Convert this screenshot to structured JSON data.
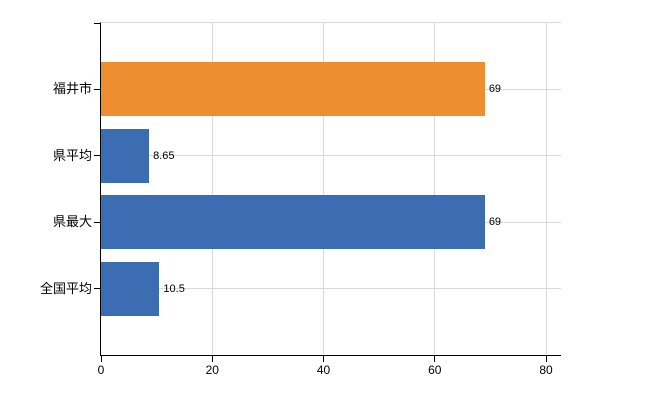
{
  "chart_data": {
    "type": "bar",
    "orientation": "horizontal",
    "title": "",
    "xlabel": "",
    "ylabel": "",
    "categories": [
      "福井市",
      "県平均",
      "県最大",
      "全国平均"
    ],
    "values": [
      69,
      8.65,
      69,
      10.5
    ],
    "value_labels": [
      "69",
      "8.65",
      "69",
      "10.5"
    ],
    "bar_colors": [
      "#EE8E31",
      "#3C6DB2",
      "#3C6DB2",
      "#3C6DB2"
    ],
    "xticks": [
      0,
      20,
      40,
      60,
      80
    ],
    "xtick_labels": [
      "0",
      "20",
      "40",
      "60",
      "80"
    ],
    "xlim": [
      0,
      82.7
    ],
    "grid": true,
    "legend": false,
    "colors": {
      "grid": "#d9d9d9",
      "axis": "#000000",
      "text": "#000000",
      "background": "#ffffff"
    }
  }
}
